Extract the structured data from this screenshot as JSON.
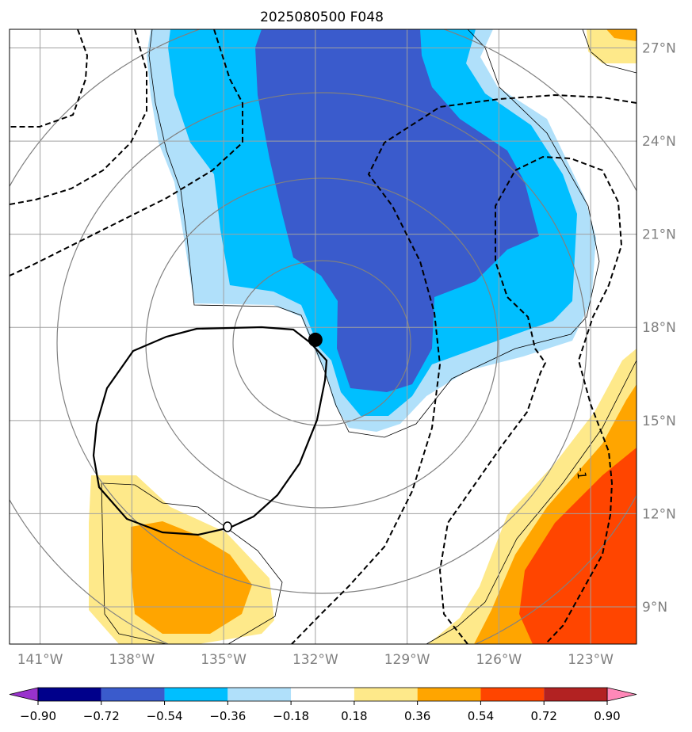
{
  "title": "2025080500 F048",
  "colors": {
    "neg_090_plus": "#9932cc",
    "neg_090_072": "#00008b",
    "neg_072_054": "#3a5bcc",
    "neg_054_036": "#00bfff",
    "neg_036_018": "#b0e0fa",
    "neutral": "#ffffff",
    "pos_018_036": "#fee98a",
    "pos_036_054": "#ffa500",
    "pos_054_072": "#ff4500",
    "pos_072_090": "#b22222",
    "pos_090_plus": "#ff88b8",
    "grid": "#a0a0a0",
    "range_rings": "#808080",
    "tick_labels": "#808080"
  },
  "chart_data": {
    "type": "map",
    "title": "2025080500 F048",
    "lon_range": [
      -142,
      -121.5
    ],
    "lat_range": [
      7.8,
      27.6
    ],
    "x_ticks": [
      -141,
      -138,
      -135,
      -132,
      -129,
      -126,
      -123
    ],
    "x_tick_labels": [
      "141°W",
      "138°W",
      "135°W",
      "132°W",
      "129°W",
      "126°W",
      "123°W"
    ],
    "y_ticks": [
      9,
      12,
      15,
      18,
      21,
      24,
      27
    ],
    "y_tick_labels": [
      "9°N",
      "12°N",
      "15°N",
      "18°N",
      "21°N",
      "24°N",
      "27°N"
    ],
    "grid": true,
    "storm_center": {
      "lon": -132.0,
      "lat": 17.6
    },
    "contour_label": {
      "text": "-1",
      "lon": -123.3,
      "lat": 13.3
    },
    "colorbar": {
      "orientation": "horizontal",
      "extend": "both",
      "levels": [
        -0.9,
        -0.72,
        -0.54,
        -0.36,
        -0.18,
        0.18,
        0.36,
        0.54,
        0.72,
        0.9
      ],
      "tick_labels": [
        "−0.90",
        "−0.72",
        "−0.54",
        "−0.36",
        "−0.18",
        "0.18",
        "0.36",
        "0.54",
        "0.72",
        "0.90"
      ]
    }
  }
}
